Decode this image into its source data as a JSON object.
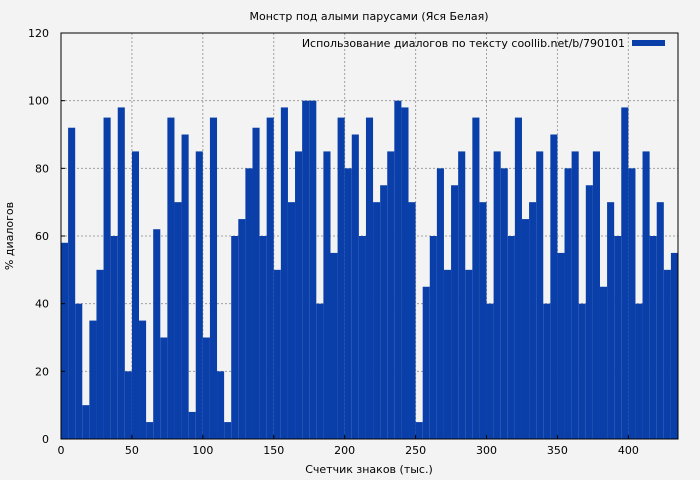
{
  "chart_data": {
    "type": "bar",
    "title": "Монстр под алыми парусами (Яся Белая)",
    "xlabel": "Счетчик знаков (тыс.)",
    "ylabel": "% диалогов",
    "xlim": [
      0,
      435
    ],
    "ylim": [
      0,
      120
    ],
    "xticks": [
      0,
      50,
      100,
      150,
      200,
      250,
      300,
      350,
      400
    ],
    "yticks": [
      0,
      20,
      40,
      60,
      80,
      100,
      120
    ],
    "grid": true,
    "legend_position": "top-right",
    "series": [
      {
        "name": "Использование диалогов по тексту coollib.net/b/790101",
        "color": "#0a3faa",
        "x": [
          0,
          5,
          10,
          15,
          20,
          25,
          30,
          35,
          40,
          45,
          50,
          55,
          60,
          65,
          70,
          75,
          80,
          85,
          90,
          95,
          100,
          105,
          110,
          115,
          120,
          125,
          130,
          135,
          140,
          145,
          150,
          155,
          160,
          165,
          170,
          175,
          180,
          185,
          190,
          195,
          200,
          205,
          210,
          215,
          220,
          225,
          230,
          235,
          240,
          245,
          250,
          255,
          260,
          265,
          270,
          275,
          280,
          285,
          290,
          295,
          300,
          305,
          310,
          315,
          320,
          325,
          330,
          335,
          340,
          345,
          350,
          355,
          360,
          365,
          370,
          375,
          380,
          385,
          390,
          395,
          400,
          405,
          410,
          415,
          420,
          425,
          430
        ],
        "values": [
          58,
          92,
          40,
          10,
          35,
          50,
          95,
          60,
          98,
          20,
          85,
          35,
          5,
          62,
          30,
          95,
          70,
          90,
          8,
          85,
          30,
          95,
          20,
          5,
          60,
          65,
          80,
          92,
          60,
          95,
          50,
          98,
          70,
          85,
          100,
          100,
          40,
          85,
          55,
          95,
          80,
          90,
          60,
          95,
          70,
          75,
          85,
          100,
          98,
          70,
          5,
          45,
          60,
          80,
          50,
          75,
          85,
          50,
          95,
          70,
          40,
          85,
          80,
          60,
          95,
          65,
          70,
          85,
          40,
          90,
          55,
          80,
          85,
          40,
          75,
          85,
          45,
          70,
          60,
          98,
          80,
          40,
          85,
          60,
          70,
          50,
          55
        ]
      }
    ]
  }
}
